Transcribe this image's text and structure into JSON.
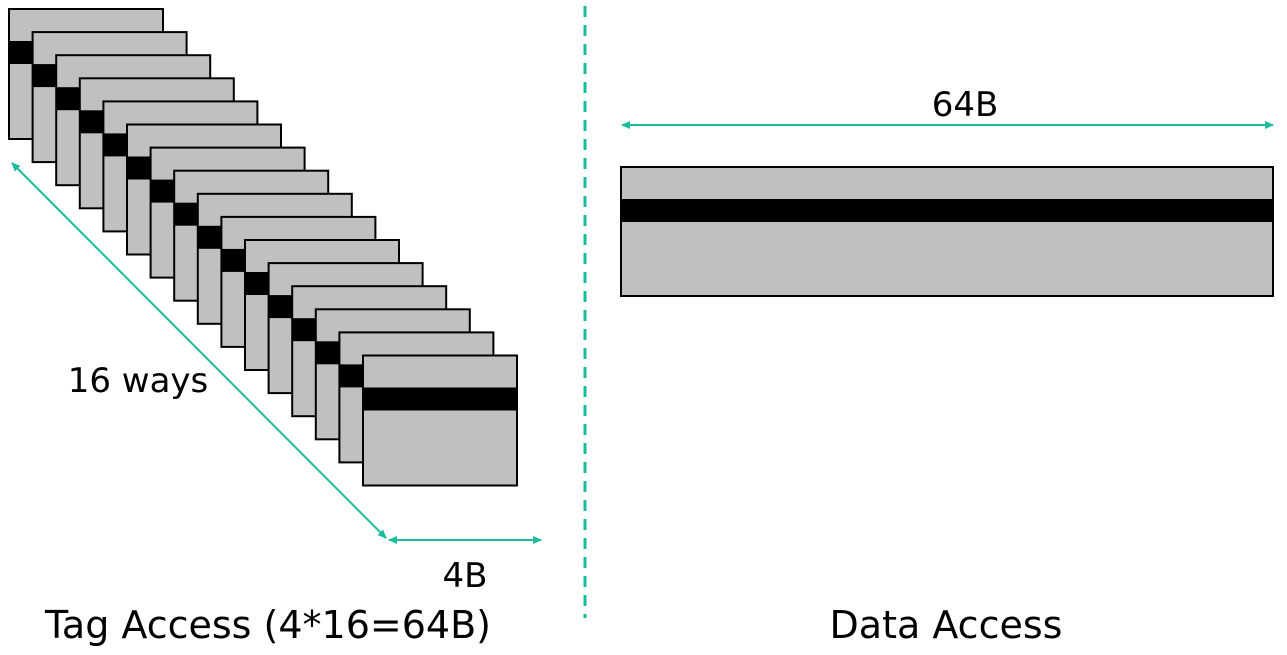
{
  "colors": {
    "block_fill": "#c0c0c0",
    "stripe": "#000000",
    "outline": "#000000",
    "arrow": "#1abc9c",
    "divider": "#1abc9c"
  },
  "tag_panel": {
    "way_count": 16,
    "ways_label": "16 ways",
    "width_label": "4B",
    "caption": "Tag Access (4*16=64B)"
  },
  "data_panel": {
    "width_label": "64B",
    "caption": "Data Access"
  }
}
